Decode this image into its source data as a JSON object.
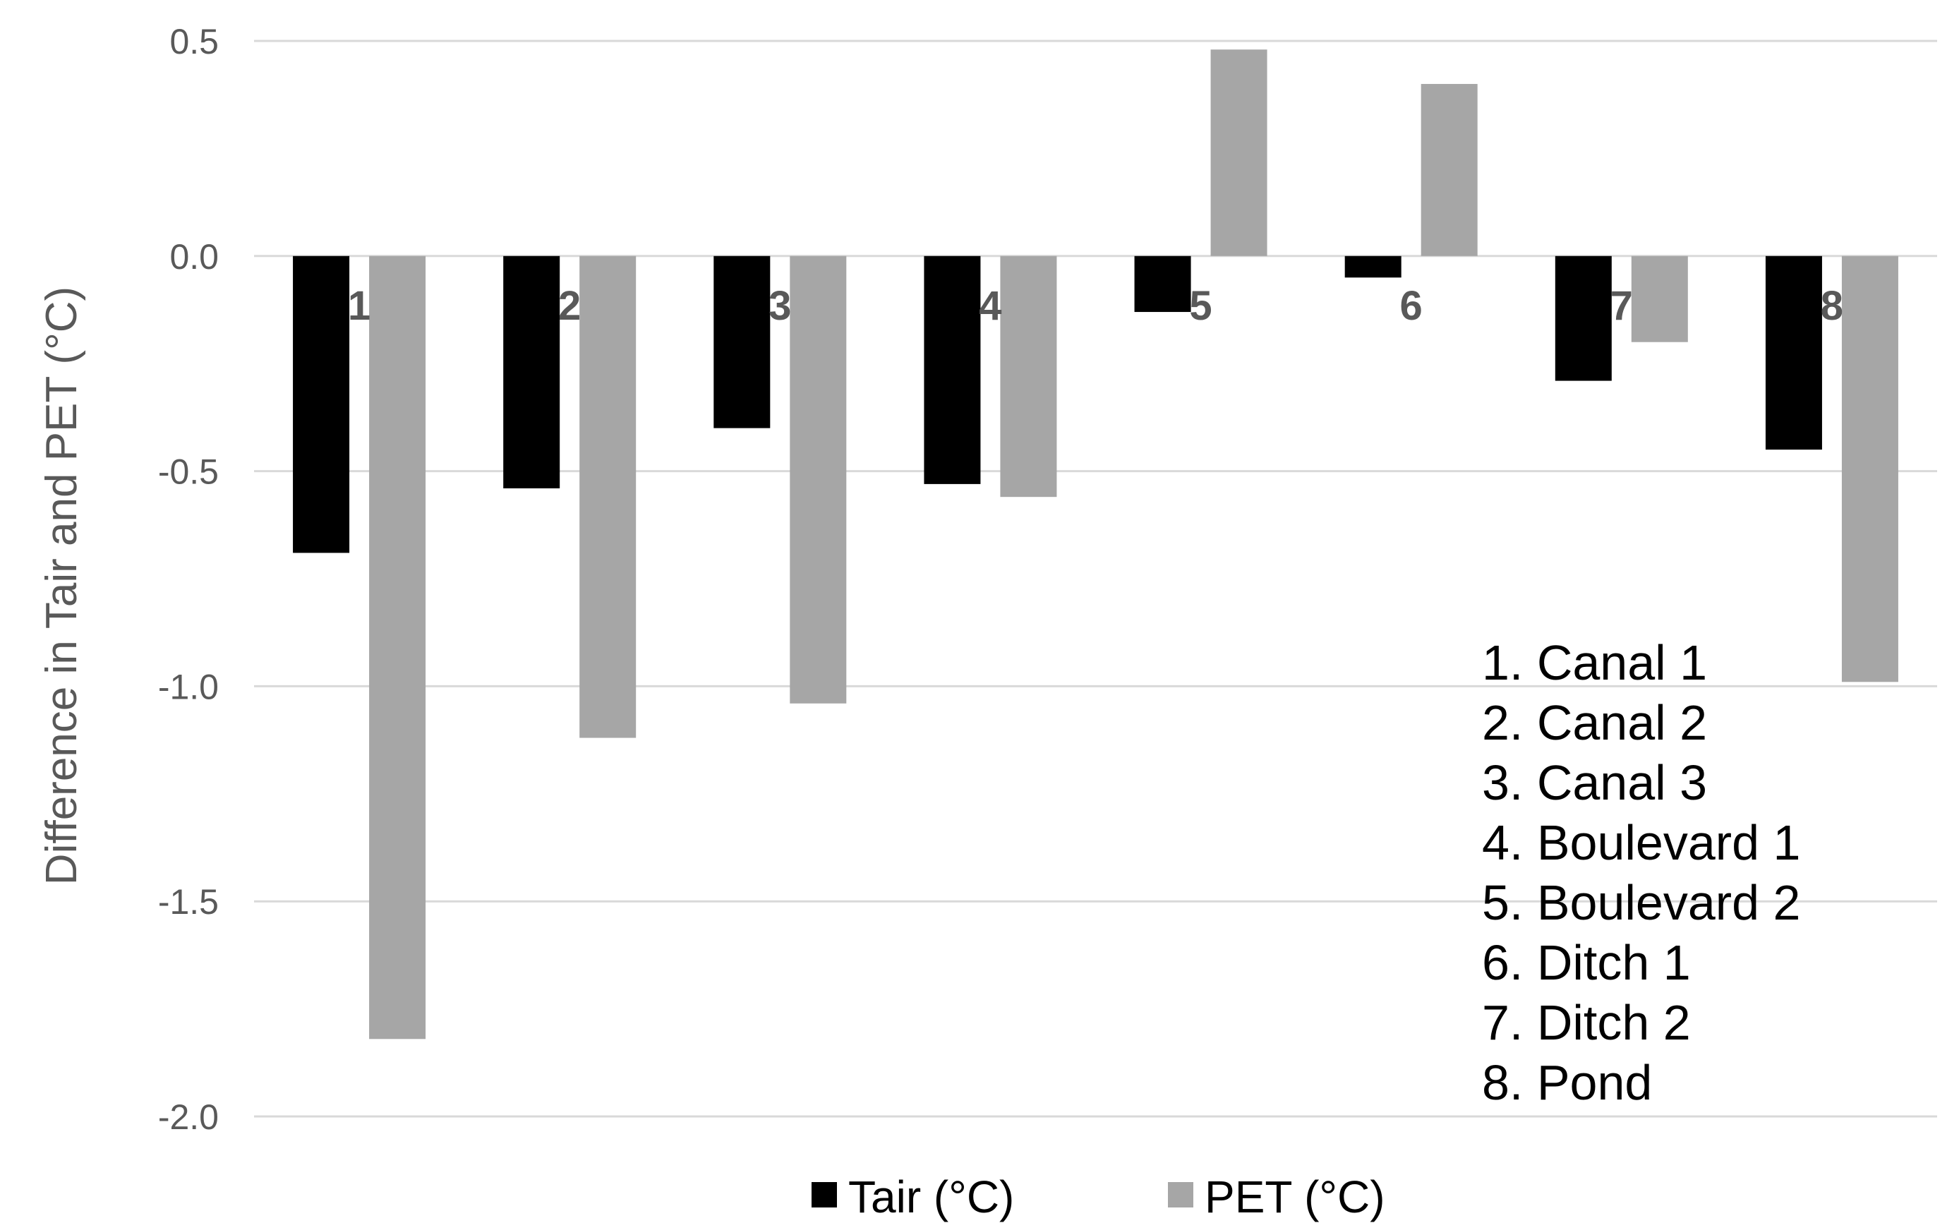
{
  "chart_data": {
    "type": "bar",
    "title": "",
    "xlabel": "",
    "ylabel": "Difference in Tair and PET (°C)",
    "ylim": [
      -2.0,
      0.5
    ],
    "yticks": [
      0.5,
      0.0,
      -0.5,
      -1.0,
      -1.5,
      -2.0
    ],
    "ytick_labels": [
      "0.5",
      "0.0",
      "-0.5",
      "-1.0",
      "-1.5",
      "-2.0"
    ],
    "grid": true,
    "legend_position": "bottom",
    "categories": [
      "1",
      "2",
      "3",
      "4",
      "5",
      "6",
      "7",
      "8"
    ],
    "series": [
      {
        "name": "Tair (°C)",
        "color": "#000000",
        "values": [
          -0.69,
          -0.54,
          -0.4,
          -0.53,
          -0.13,
          -0.05,
          -0.29,
          -0.45
        ]
      },
      {
        "name": "PET (°C)",
        "color": "#a6a6a6",
        "values": [
          -1.82,
          -1.12,
          -1.04,
          -0.56,
          0.48,
          0.4,
          -0.2,
          -0.99
        ]
      }
    ],
    "annotation_list": [
      "1. Canal 1",
      "2. Canal 2",
      "3. Canal 3",
      "4. Boulevard 1",
      "5. Boulevard 2",
      "6. Ditch 1",
      "7. Ditch 2",
      "8. Pond"
    ]
  }
}
